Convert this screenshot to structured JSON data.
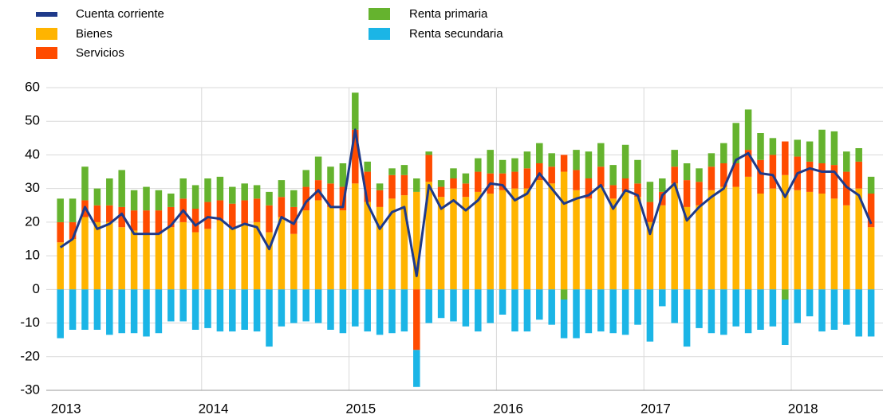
{
  "chart_data": {
    "type": "bar",
    "categories": [
      "2013",
      null,
      null,
      null,
      null,
      null,
      null,
      null,
      null,
      null,
      null,
      null,
      "2014",
      null,
      null,
      null,
      null,
      null,
      null,
      null,
      null,
      null,
      null,
      null,
      "2015",
      null,
      null,
      null,
      null,
      null,
      null,
      null,
      null,
      null,
      null,
      null,
      "2016",
      null,
      null,
      null,
      null,
      null,
      null,
      null,
      null,
      null,
      null,
      null,
      "2017",
      null,
      null,
      null,
      null,
      null,
      null,
      null,
      null,
      null,
      null,
      null,
      "2018",
      null,
      null,
      null,
      null,
      null,
      null
    ],
    "series": [
      {
        "name": "Cuenta corriente",
        "type": "line",
        "color": "#1f3a8a",
        "values": [
          12.5,
          15,
          24.5,
          18,
          19.5,
          22.5,
          16.5,
          16.5,
          16.5,
          19,
          23.5,
          19,
          21.5,
          21,
          18,
          19.5,
          18.5,
          12,
          21.5,
          19.5,
          26,
          29.5,
          24.5,
          24.5,
          47.5,
          25.5,
          18,
          23,
          24.5,
          4,
          31,
          24,
          26.5,
          23.5,
          26.5,
          31.5,
          31,
          26.5,
          28.5,
          34.5,
          30,
          25.5,
          27,
          28,
          31,
          24,
          29.5,
          28,
          16.5,
          28,
          31.5,
          20.5,
          24.5,
          27.5,
          30,
          38.5,
          40.5,
          34.5,
          34,
          27.5,
          34.5,
          36,
          35,
          35,
          30.5,
          28,
          19.5
        ]
      },
      {
        "name": "Bienes",
        "type": "bar",
        "color": "#ffb400",
        "values": [
          14,
          15,
          21.5,
          20,
          20,
          18.5,
          17.5,
          16.5,
          16.5,
          18.5,
          20,
          17,
          18,
          20.5,
          18.5,
          19.5,
          20,
          17,
          21.5,
          16.5,
          23.5,
          26.5,
          24.5,
          23.5,
          31.5,
          26,
          24.5,
          27,
          28,
          29,
          32,
          27.5,
          30,
          27.5,
          29,
          28.5,
          29.5,
          30,
          30,
          32.5,
          31.5,
          35,
          29.5,
          27,
          30.5,
          27,
          29,
          27.5,
          20,
          25,
          31.5,
          24.5,
          25,
          29.5,
          30.5,
          30.5,
          33.5,
          28.5,
          30,
          34,
          29.5,
          29,
          28.5,
          27,
          25,
          30,
          18.5
        ]
      },
      {
        "name": "Servicios",
        "type": "bar",
        "color": "#ff4b00",
        "values": [
          6,
          5,
          5,
          5,
          5,
          6,
          6,
          7,
          7,
          6,
          7,
          7,
          8,
          6,
          7,
          7,
          7,
          8,
          6,
          8,
          7,
          6,
          7,
          7,
          16,
          9,
          5,
          7,
          6,
          -18,
          8,
          3,
          3,
          4,
          6,
          6,
          5,
          5,
          6,
          5,
          5,
          5,
          6,
          6,
          6,
          4,
          4,
          4,
          6,
          4,
          5,
          8,
          7,
          7,
          7,
          7,
          8,
          10,
          10,
          10,
          10,
          9,
          9,
          10,
          10,
          8,
          10
        ]
      },
      {
        "name": "Renta primaria",
        "type": "bar",
        "color": "#65b32e",
        "values": [
          7,
          7,
          10,
          5,
          8,
          11,
          6,
          7,
          6,
          4,
          6,
          7,
          7,
          7,
          5,
          5,
          4,
          4,
          5,
          5,
          5,
          7,
          5,
          7,
          11,
          3,
          2,
          2,
          3,
          4,
          1,
          2,
          3,
          3,
          4,
          7,
          4,
          4,
          5,
          6,
          4,
          -3,
          6,
          8,
          7,
          6,
          10,
          7,
          6,
          4,
          5,
          5,
          4,
          4,
          6,
          12,
          12,
          8,
          5,
          -3,
          5,
          6,
          10,
          10,
          6,
          4,
          5
        ]
      },
      {
        "name": "Renta secundaria",
        "type": "bar",
        "color": "#1bb5e6",
        "values": [
          -14.5,
          -12,
          -12,
          -12,
          -13.5,
          -13,
          -13,
          -14,
          -13,
          -9.5,
          -9.5,
          -12,
          -11.5,
          -12.5,
          -12.5,
          -12,
          -12.5,
          -17,
          -11,
          -10,
          -9.5,
          -10,
          -12,
          -13,
          -11,
          -12.5,
          -13.5,
          -13,
          -12.5,
          -11,
          -10,
          -8.5,
          -9.5,
          -11,
          -12.5,
          -10,
          -7.5,
          -12.5,
          -12.5,
          -9,
          -10.5,
          -11.5,
          -14.5,
          -13,
          -12.5,
          -13,
          -13.5,
          -10.5,
          -15.5,
          -5,
          -10,
          -17,
          -11.5,
          -13,
          -13.5,
          -11,
          -13,
          -12,
          -11,
          -13.5,
          -10,
          -8,
          -12.5,
          -12,
          -10.5,
          -14,
          -14
        ]
      }
    ],
    "ylim": [
      -30,
      60
    ],
    "yticks": [
      -30,
      -20,
      -10,
      0,
      10,
      20,
      30,
      40,
      50,
      60
    ],
    "grid": true
  }
}
